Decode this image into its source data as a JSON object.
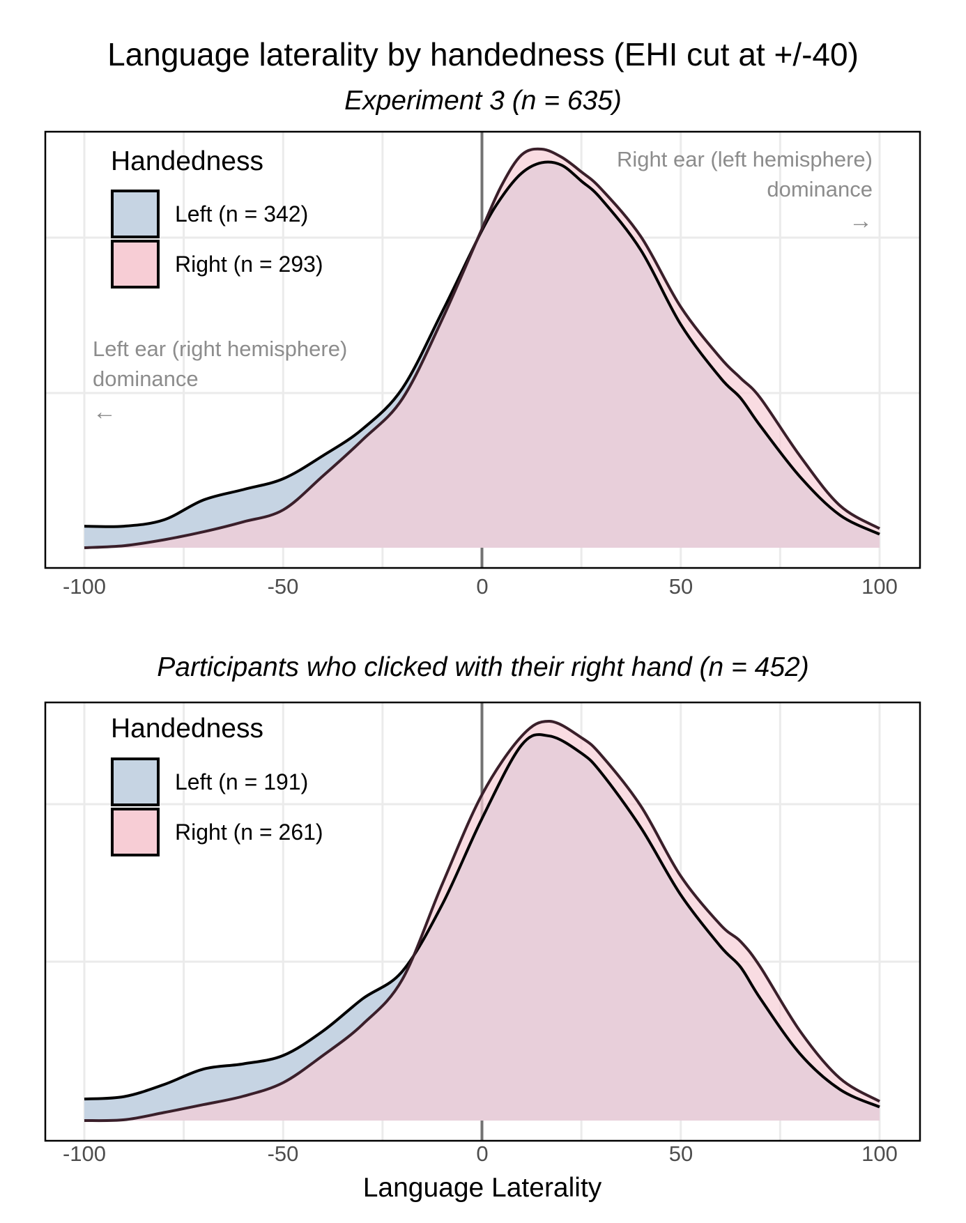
{
  "title": "Language laterality by handedness (EHI cut at +/-40)",
  "xlabel": "Language Laterality",
  "colors": {
    "Left": "#c6d4e3",
    "Right": "#f7cdd5",
    "overlap": "#d3b3c4"
  },
  "chart_data": [
    {
      "type": "area",
      "subtitle": "Experiment 3 (n = 635)",
      "xlim": [
        -100,
        100
      ],
      "xticks": [
        "-100",
        "-50",
        "0",
        "50",
        "100"
      ],
      "legend": {
        "title": "Handedness",
        "placement": "top-left",
        "entries": [
          "Left (n = 342)",
          "Right (n = 293)"
        ]
      },
      "annotations": {
        "left_line1": "Left ear (right hemisphere)",
        "left_line2": "dominance",
        "left_arrow": "←",
        "right_line1": "Right ear (left hemisphere)",
        "right_line2": "dominance",
        "right_arrow": "→"
      },
      "x": [
        -100,
        -90,
        -80,
        -70,
        -60,
        -50,
        -40,
        -30,
        -20,
        -10,
        0,
        5,
        10,
        15,
        20,
        25,
        30,
        40,
        50,
        60,
        65,
        70,
        80,
        90,
        100
      ],
      "series": [
        {
          "name": "Left (n = 342)",
          "values": [
            0.054,
            0.054,
            0.07,
            0.12,
            0.146,
            0.173,
            0.231,
            0.298,
            0.4,
            0.592,
            0.796,
            0.88,
            0.94,
            0.966,
            0.96,
            0.92,
            0.875,
            0.746,
            0.56,
            0.426,
            0.376,
            0.306,
            0.178,
            0.082,
            0.034
          ]
        },
        {
          "name": "Right (n = 293)",
          "values": [
            0.0,
            0.005,
            0.02,
            0.04,
            0.065,
            0.095,
            0.18,
            0.271,
            0.374,
            0.573,
            0.8,
            0.91,
            0.986,
            1.0,
            0.98,
            0.943,
            0.9,
            0.78,
            0.604,
            0.476,
            0.426,
            0.376,
            0.23,
            0.106,
            0.048
          ]
        }
      ]
    },
    {
      "type": "area",
      "subtitle": "Participants who clicked with their right hand (n = 452)",
      "xlim": [
        -100,
        100
      ],
      "xticks": [
        "-100",
        "-50",
        "0",
        "50",
        "100"
      ],
      "legend": {
        "title": "Handedness",
        "placement": "top-left",
        "entries": [
          "Left (n = 191)",
          "Right (n = 261)"
        ]
      },
      "x": [
        -100,
        -90,
        -80,
        -70,
        -60,
        -50,
        -40,
        -30,
        -20,
        -10,
        0,
        10,
        17,
        25,
        30,
        40,
        50,
        60,
        65,
        70,
        80,
        90,
        100
      ],
      "series": [
        {
          "name": "Left (n = 191)",
          "values": [
            0.054,
            0.06,
            0.09,
            0.129,
            0.142,
            0.163,
            0.224,
            0.305,
            0.374,
            0.541,
            0.756,
            0.941,
            0.963,
            0.92,
            0.871,
            0.733,
            0.565,
            0.436,
            0.385,
            0.306,
            0.167,
            0.078,
            0.034
          ]
        },
        {
          "name": "Right (n = 261)",
          "values": [
            0.0,
            0.002,
            0.02,
            0.04,
            0.061,
            0.095,
            0.163,
            0.241,
            0.354,
            0.592,
            0.816,
            0.963,
            1.0,
            0.959,
            0.915,
            0.787,
            0.612,
            0.49,
            0.449,
            0.385,
            0.224,
            0.106,
            0.048
          ]
        }
      ]
    }
  ]
}
